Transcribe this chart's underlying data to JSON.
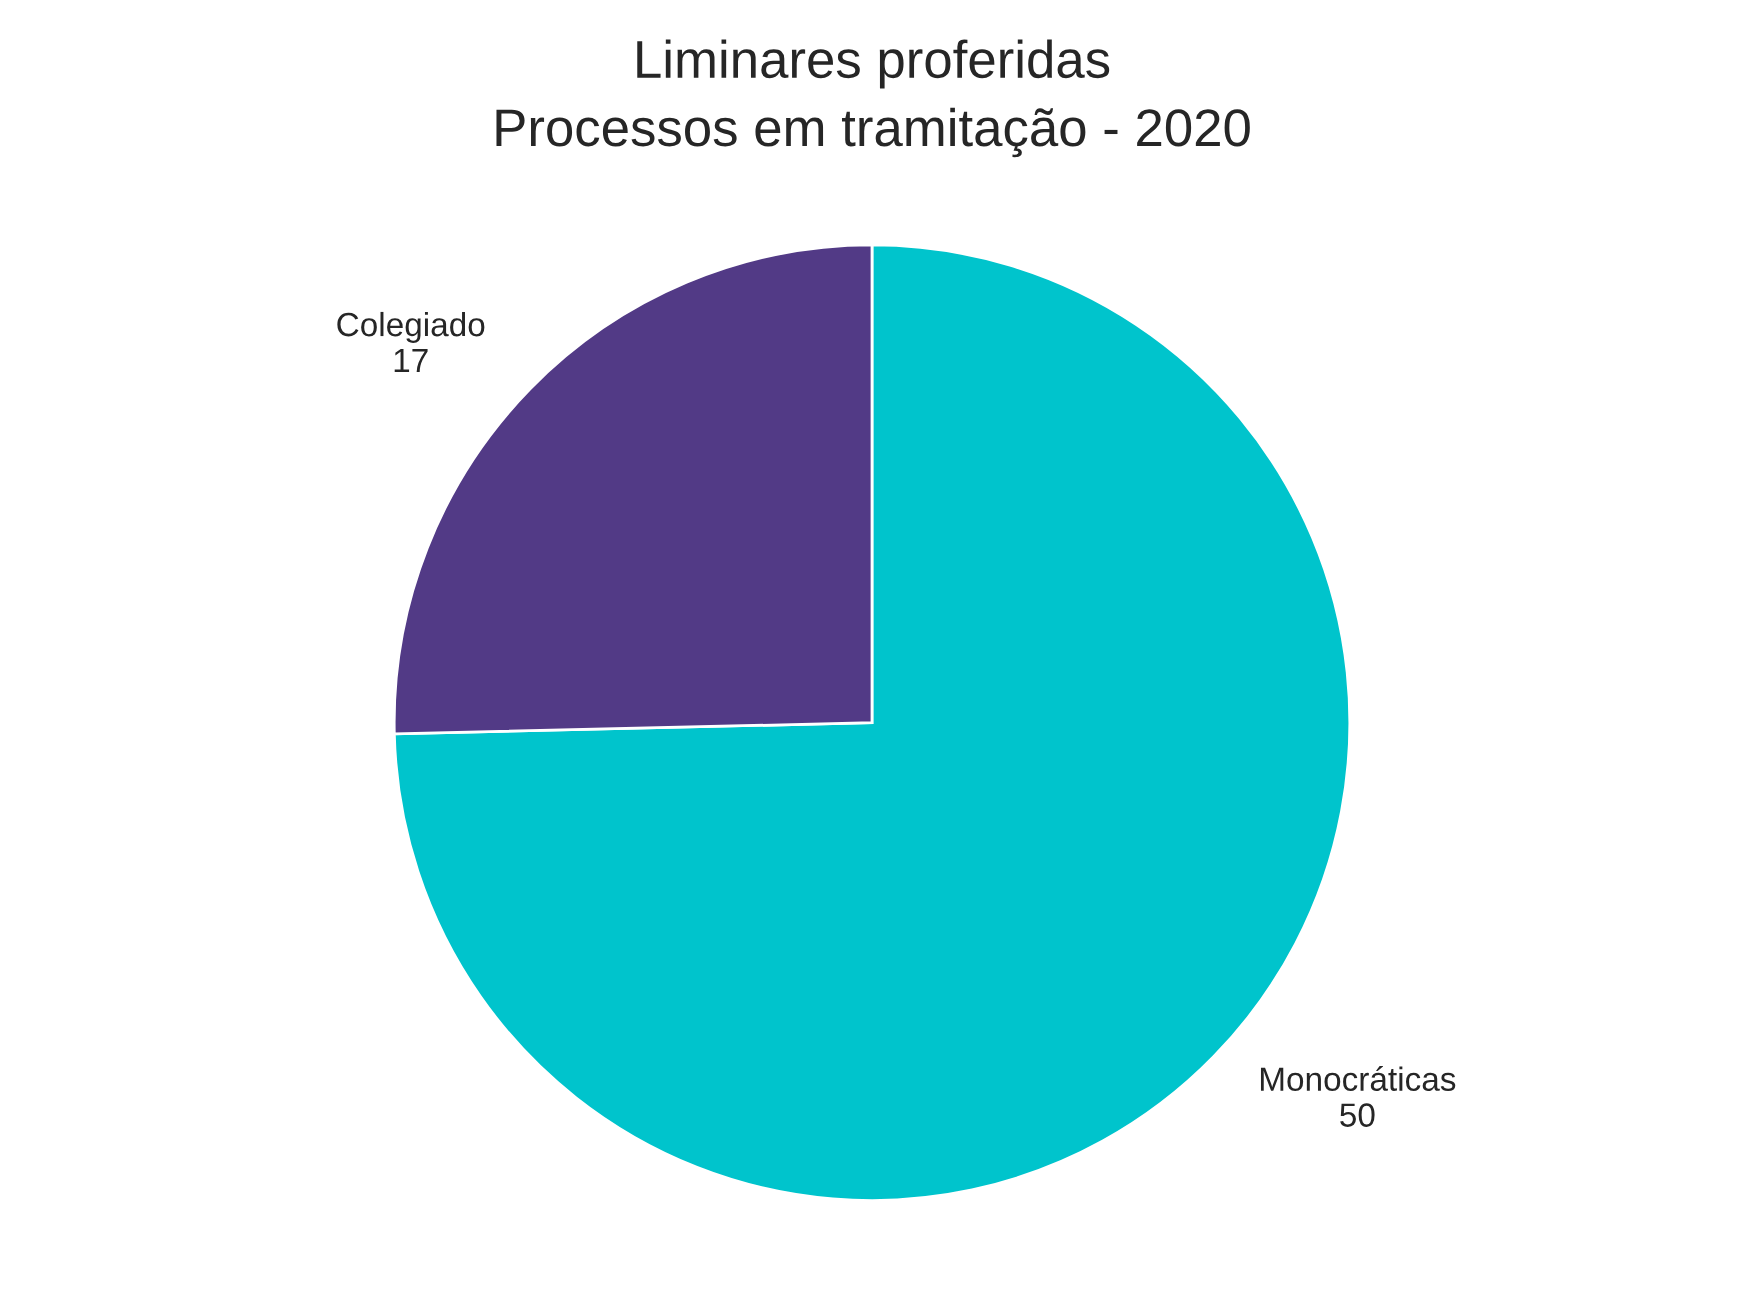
{
  "chart_data": {
    "type": "pie",
    "title": "Liminares proferidas\nProcessos em tramitação - 2020",
    "categories": [
      "Monocráticas",
      "Colegiado"
    ],
    "values": [
      50,
      17
    ],
    "colors": [
      "#00c4cc",
      "#523a86"
    ],
    "data_labels": true,
    "legend": false
  }
}
